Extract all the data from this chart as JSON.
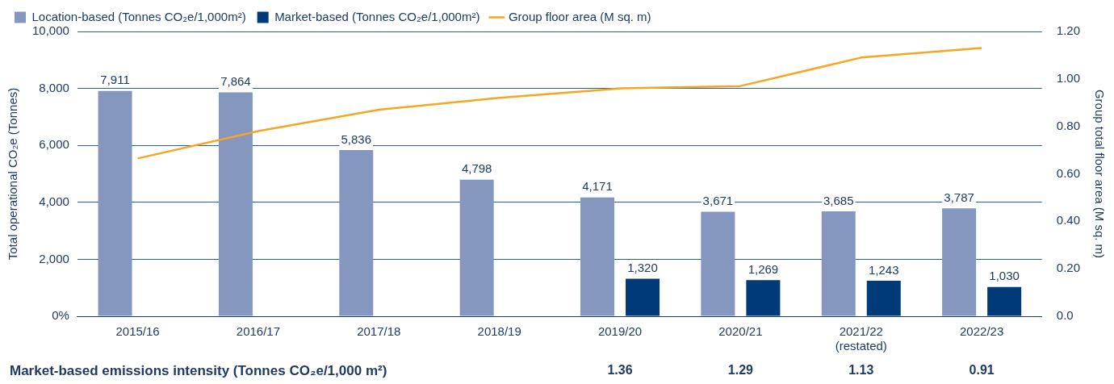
{
  "chart_data": {
    "type": "bar",
    "categories": [
      "2015/16",
      "2016/17",
      "2017/18",
      "2018/19",
      "2019/20",
      "2020/21",
      "2021/22\n(restated)",
      "2022/23"
    ],
    "series": [
      {
        "name": "Location-based (Tonnes CO₂e/1,000m²)",
        "color": "#8596bf",
        "values": [
          7911,
          7864,
          5836,
          4798,
          4171,
          3671,
          3685,
          3787
        ],
        "value_labels": [
          "7,911",
          "7,864",
          "5,836",
          "4,798",
          "4,171",
          "3,671",
          "3,685",
          "3,787"
        ]
      },
      {
        "name": "Market-based (Tonnes CO₂e/1,000m²)",
        "color": "#003a78",
        "values": [
          null,
          null,
          null,
          null,
          1320,
          1269,
          1243,
          1030
        ],
        "value_labels": [
          null,
          null,
          null,
          null,
          "1,320",
          "1,269",
          "1,243",
          "1,030"
        ]
      },
      {
        "name": "Group floor area (M sq. m)",
        "type": "line",
        "axis": "y2",
        "color": "#f5a623",
        "values": [
          0.665,
          0.78,
          0.87,
          0.92,
          0.96,
          0.97,
          1.09,
          1.13
        ]
      }
    ],
    "ylabel": "Total operational CO₂e (Tonnes)",
    "y2label": "Group total floor area (M sq. m)",
    "ylim": [
      0,
      10000
    ],
    "yticks": [
      {
        "value": 0,
        "label": "0%"
      },
      {
        "value": 2000,
        "label": "2,000"
      },
      {
        "value": 4000,
        "label": "4,000"
      },
      {
        "value": 6000,
        "label": "6,000"
      },
      {
        "value": 8000,
        "label": "8,000"
      },
      {
        "value": 10000,
        "label": "10,000"
      }
    ],
    "y2lim": [
      0,
      1.2
    ],
    "y2ticks": [
      {
        "value": 0,
        "label": "0.0"
      },
      {
        "value": 0.2,
        "label": "0.20"
      },
      {
        "value": 0.4,
        "label": "0.40"
      },
      {
        "value": 0.6,
        "label": "0.60"
      },
      {
        "value": 0.8,
        "label": "0.80"
      },
      {
        "value": 1,
        "label": "1.00"
      },
      {
        "value": 1.2,
        "label": "1.20"
      }
    ],
    "grid": "y",
    "legend": "top left",
    "marker": "none",
    "annotations": [
      "Market-based emissions intensity (Tonnes CO₂e/1,000 m²)",
      "1.36",
      "1.29",
      "1.13",
      "0.91"
    ]
  }
}
